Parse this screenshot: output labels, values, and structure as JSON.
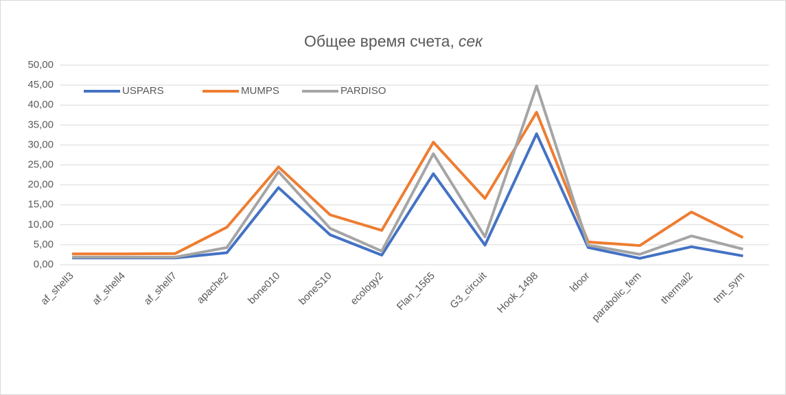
{
  "chart_data": {
    "type": "line",
    "title": "Общее время счета,",
    "title_unit": "сек",
    "categories": [
      "af_shell3",
      "af_shell4",
      "af_shell7",
      "apache2",
      "bone010",
      "boneS10",
      "ecology2",
      "Flan_1565",
      "G3_circuit",
      "Hook_1498",
      "ldoor",
      "parabolic_fem",
      "thermal2",
      "tmt_sym"
    ],
    "series": [
      {
        "name": "USPARS",
        "color": "#4472c4",
        "values": [
          1.7,
          1.7,
          1.7,
          3.0,
          19.3,
          7.5,
          2.4,
          22.8,
          4.9,
          32.8,
          4.3,
          1.6,
          4.5,
          2.2
        ]
      },
      {
        "name": "MUMPS",
        "color": "#ed7d31",
        "values": [
          2.7,
          2.7,
          2.8,
          9.4,
          24.5,
          12.5,
          8.6,
          30.7,
          16.6,
          38.2,
          5.7,
          4.8,
          13.2,
          6.8
        ]
      },
      {
        "name": "PARDISO",
        "color": "#a5a5a5",
        "values": [
          1.9,
          1.9,
          1.9,
          4.3,
          23.3,
          9.1,
          3.4,
          27.8,
          7.0,
          44.8,
          4.9,
          2.6,
          7.2,
          3.9
        ]
      }
    ],
    "ylim": [
      0,
      50
    ],
    "yticks": [
      {
        "value": 0,
        "label": "0,00"
      },
      {
        "value": 5,
        "label": "5,00"
      },
      {
        "value": 10,
        "label": "10,00"
      },
      {
        "value": 15,
        "label": "15,00"
      },
      {
        "value": 20,
        "label": "20,00"
      },
      {
        "value": 25,
        "label": "25,00"
      },
      {
        "value": 30,
        "label": "30,00"
      },
      {
        "value": 35,
        "label": "35,00"
      },
      {
        "value": 40,
        "label": "40,00"
      },
      {
        "value": 45,
        "label": "45,00"
      },
      {
        "value": 50,
        "label": "50,00"
      }
    ],
    "grid": true,
    "legend": "top-left"
  }
}
